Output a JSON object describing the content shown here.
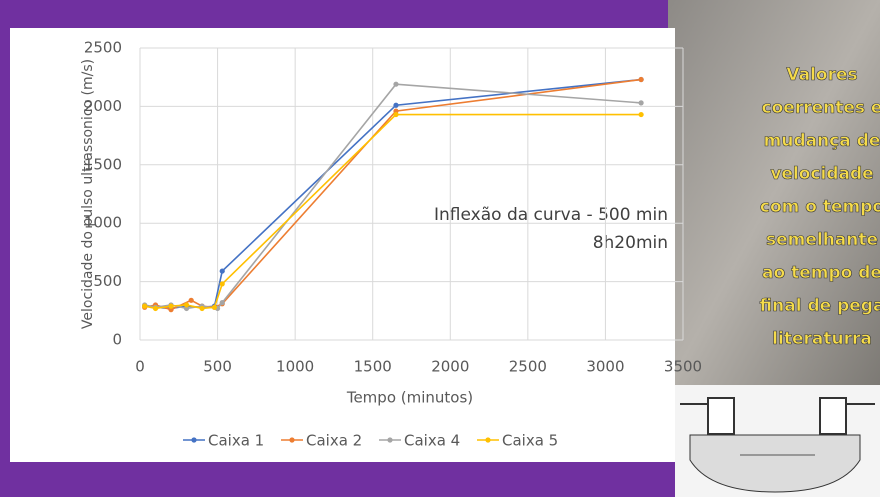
{
  "chart_data": {
    "type": "line",
    "x_label": "Tempo (minutos)",
    "y_label": "Velocidade do pulso ultrassonico (m/s)",
    "annotations": [
      "Inflexão da curva - 500 min",
      "8h20min"
    ],
    "xlim": [
      0,
      3500
    ],
    "xticks": [
      0,
      500,
      1000,
      1500,
      2000,
      2500,
      3000,
      3500
    ],
    "ylim": [
      0,
      2500
    ],
    "yticks": [
      0,
      500,
      1000,
      1500,
      2000,
      2500
    ],
    "grid": true,
    "legend": "bottom",
    "series": [
      {
        "name": "Caixa 1",
        "color": "#4472c4",
        "x": [
          30,
          100,
          200,
          300,
          400,
          480,
          530,
          1650,
          3230
        ],
        "values": [
          290,
          280,
          270,
          290,
          280,
          290,
          590,
          2010,
          2230
        ]
      },
      {
        "name": "Caixa 2",
        "color": "#ed7d31",
        "x": [
          30,
          100,
          200,
          330,
          400,
          480,
          530,
          1650,
          3230
        ],
        "values": [
          280,
          300,
          260,
          340,
          290,
          280,
          310,
          1960,
          2230
        ]
      },
      {
        "name": "Caixa 4",
        "color": "#a5a5a5",
        "x": [
          30,
          100,
          200,
          300,
          400,
          500,
          530,
          1650,
          3230
        ],
        "values": [
          300,
          280,
          300,
          270,
          290,
          270,
          320,
          2190,
          2030
        ]
      },
      {
        "name": "Caixa 5",
        "color": "#ffc000",
        "x": [
          30,
          100,
          200,
          300,
          400,
          480,
          530,
          1650,
          3230
        ],
        "values": [
          290,
          270,
          290,
          300,
          270,
          280,
          480,
          1930,
          1930
        ]
      }
    ]
  },
  "side_text": {
    "lines": [
      "Valores",
      "coerrentes e",
      "mudança de",
      "velocidade",
      "com o tempo",
      "semelhante",
      "ao tempo de",
      "final de pega",
      "literaturra"
    ]
  }
}
